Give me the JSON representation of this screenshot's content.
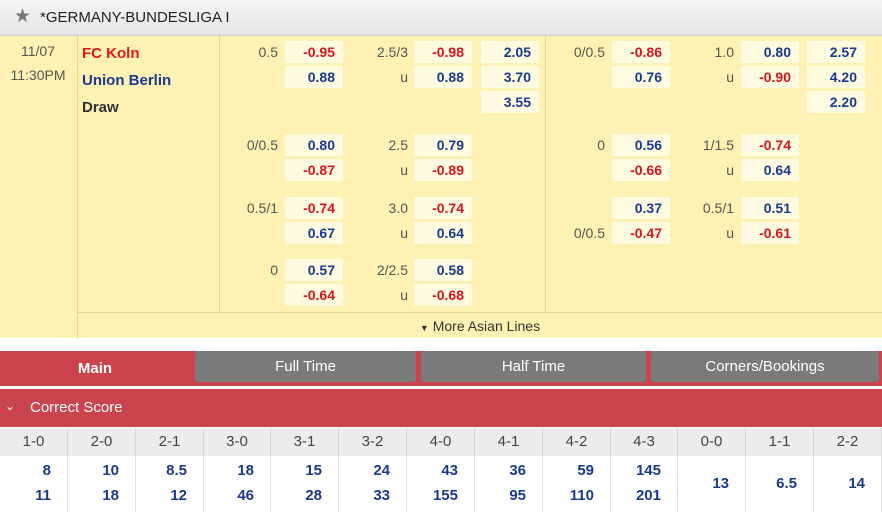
{
  "header": {
    "star_icon": "star-icon",
    "league": "*GERMANY-BUNDESLIGA I"
  },
  "match": {
    "date": "11/07",
    "time": "11:30PM",
    "home": "FC Koln",
    "away": "Union Berlin",
    "draw": "Draw",
    "home_color": "#e8151b",
    "away_color": "#1a3a8f"
  },
  "full_time_main": {
    "handicap": {
      "line": "0.5",
      "home": "-0.95",
      "away": "0.88"
    },
    "total": {
      "line": "2.5/3",
      "under_label": "u",
      "over": "-0.98",
      "under": "0.88"
    },
    "oneXtwo": {
      "home": "2.05",
      "away": "3.70",
      "draw": "3.55"
    }
  },
  "first_half_main": {
    "handicap": {
      "line": "0/0.5",
      "home": "-0.86",
      "away": "0.76"
    },
    "total": {
      "line": "1.0",
      "under_label": "u",
      "over": "0.80",
      "under": "-0.90"
    },
    "oneXtwo": {
      "home": "2.57",
      "away": "4.20",
      "draw": "2.20"
    }
  },
  "alt_lines": [
    {
      "ft_hdp": {
        "line": "0/0.5",
        "home": "0.80",
        "away": "-0.87"
      },
      "ft_ou": {
        "line": "2.5",
        "over": "0.79",
        "under_label": "u",
        "under": "-0.89"
      },
      "fh_hdp": {
        "line": "0",
        "home": "0.56",
        "away": "-0.66"
      },
      "fh_ou": {
        "line": "1/1.5",
        "over": "-0.74",
        "under_label": "u",
        "under": "0.64"
      }
    },
    {
      "ft_hdp": {
        "line": "0.5/1",
        "home": "-0.74",
        "away": "0.67"
      },
      "ft_ou": {
        "line": "3.0",
        "over": "-0.74",
        "under_label": "u",
        "under": "0.64"
      },
      "fh_hdp": {
        "line": "0/0.5",
        "home": "0.37",
        "away": "-0.47"
      },
      "fh_ou": {
        "line": "0.5/1",
        "over": "0.51",
        "under_label": "u",
        "under": "-0.61"
      }
    },
    {
      "ft_hdp": {
        "line": "0",
        "home": "0.57",
        "away": "-0.64"
      },
      "ft_ou": {
        "line": "2/2.5",
        "over": "0.58",
        "under_label": "u",
        "under": "-0.68"
      }
    }
  ],
  "more_lines": "More Asian Lines",
  "more_icon": "caret-down-icon",
  "tabs": [
    {
      "label": "Main",
      "active": true
    },
    {
      "label": "Full Time",
      "active": false
    },
    {
      "label": "Half Time",
      "active": false
    },
    {
      "label": "Corners/Bookings",
      "active": false
    }
  ],
  "correct_score": {
    "title": "Correct Score",
    "collapse_icon": "chevron-down-icon",
    "columns": [
      {
        "score": "1-0",
        "home": "8",
        "away": "11"
      },
      {
        "score": "2-0",
        "home": "10",
        "away": "18"
      },
      {
        "score": "2-1",
        "home": "8.5",
        "away": "12"
      },
      {
        "score": "3-0",
        "home": "18",
        "away": "46"
      },
      {
        "score": "3-1",
        "home": "15",
        "away": "28"
      },
      {
        "score": "3-2",
        "home": "24",
        "away": "33"
      },
      {
        "score": "4-0",
        "home": "43",
        "away": "155"
      },
      {
        "score": "4-1",
        "home": "36",
        "away": "95"
      },
      {
        "score": "4-2",
        "home": "59",
        "away": "110"
      },
      {
        "score": "4-3",
        "home": "145",
        "away": "201"
      },
      {
        "score": "0-0",
        "draw": "13"
      },
      {
        "score": "1-1",
        "draw": "6.5"
      },
      {
        "score": "2-2",
        "draw": "14"
      }
    ]
  }
}
